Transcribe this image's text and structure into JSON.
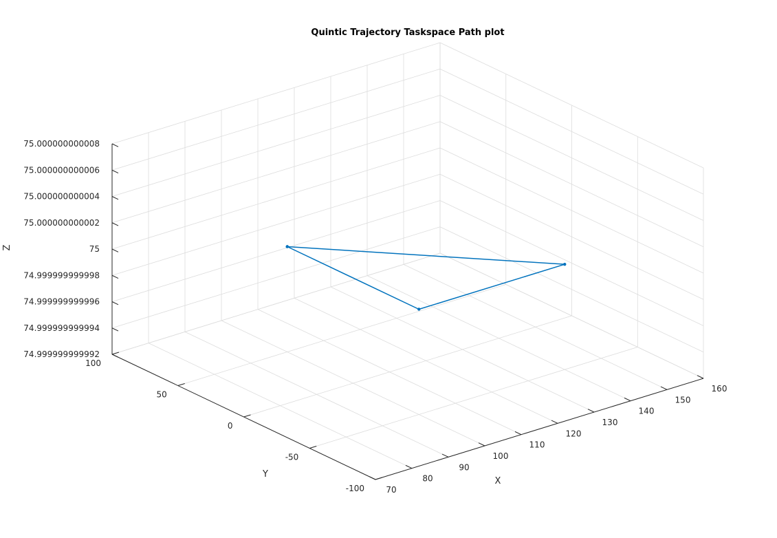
{
  "chart_data": {
    "type": "line",
    "projection": "3d",
    "title": "Quintic Trajectory Taskspace Path plot",
    "xlabel": "X",
    "ylabel": "Y",
    "zlabel": "Z",
    "xlim": [
      70,
      160
    ],
    "ylim": [
      -100,
      100
    ],
    "zlim": [
      74.999999999992,
      75.000000000008
    ],
    "x_ticks": [
      "70",
      "80",
      "90",
      "100",
      "110",
      "120",
      "130",
      "140",
      "150",
      "160"
    ],
    "y_ticks": [
      "-100",
      "-50",
      "0",
      "50",
      "100"
    ],
    "z_ticks": [
      "74.999999999992",
      "74.999999999994",
      "74.999999999996",
      "74.999999999998",
      "75",
      "75.000000000002",
      "75.000000000004",
      "75.000000000006",
      "75.000000000008"
    ],
    "grid": true,
    "series": [
      {
        "color": "#0072BD",
        "points": [
          {
            "x": 100,
            "y": 50,
            "z": 75.0
          },
          {
            "x": 140,
            "y": -50,
            "z": 75.0
          },
          {
            "x": 100,
            "y": -50,
            "z": 75.0
          },
          {
            "x": 100,
            "y": 50,
            "z": 75.0
          }
        ]
      }
    ],
    "colors": {
      "line": "#0072BD",
      "grid": "#dcdcdc",
      "axis": "#262626",
      "text": "#262626"
    }
  }
}
